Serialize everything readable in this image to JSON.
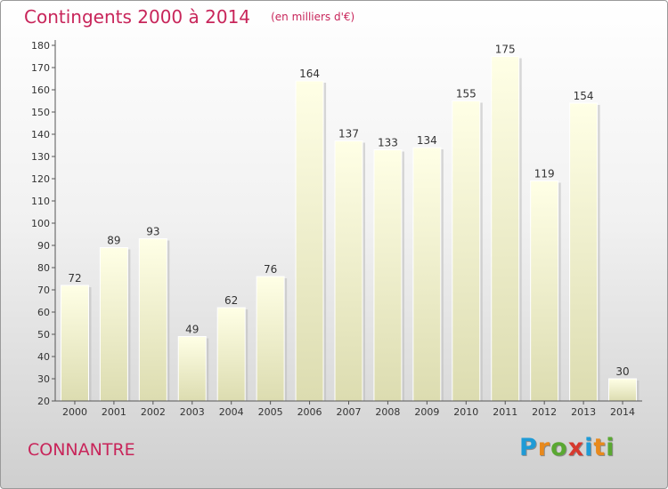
{
  "header": {
    "title": "Contingents 2000 à 2014",
    "subtitle": "(en milliers d'€)"
  },
  "footer": {
    "commune": "CONNANTRE",
    "logo": {
      "letters": [
        "P",
        "r",
        "o",
        "x",
        "i",
        "t",
        "i"
      ],
      "colors": [
        "#1f9bd6",
        "#e8891c",
        "#5aa832",
        "#d63a2f",
        "#1f9bd6",
        "#e8891c",
        "#5aa832"
      ]
    }
  },
  "chart_data": {
    "type": "bar",
    "categories": [
      "2000",
      "2001",
      "2002",
      "2003",
      "2004",
      "2005",
      "2006",
      "2007",
      "2008",
      "2009",
      "2010",
      "2011",
      "2012",
      "2013",
      "2014"
    ],
    "values": [
      72,
      89,
      93,
      49,
      62,
      76,
      164,
      137,
      133,
      134,
      155,
      175,
      119,
      154,
      30
    ],
    "data_labels": [
      "72",
      "89",
      "93",
      "49",
      "62",
      "76",
      "164",
      "137",
      "133",
      "134",
      "155",
      "175",
      "119",
      "154",
      "30"
    ],
    "title": "Contingents 2000 à 2014",
    "subtitle": "(en milliers d'€)",
    "xlabel": "",
    "ylabel": "",
    "ylim": [
      20,
      180
    ],
    "yticks": [
      "20",
      "30",
      "40",
      "50",
      "60",
      "70",
      "80",
      "90",
      "100",
      "110",
      "120",
      "130",
      "140",
      "150",
      "160",
      "170",
      "180"
    ],
    "grid": false,
    "legend": "none",
    "colors": {
      "bar_top": "#ffffe6",
      "bar_bottom": "#dcdcb0",
      "axis": "#555555",
      "text": "#333333",
      "accent": "#c8255a"
    }
  }
}
